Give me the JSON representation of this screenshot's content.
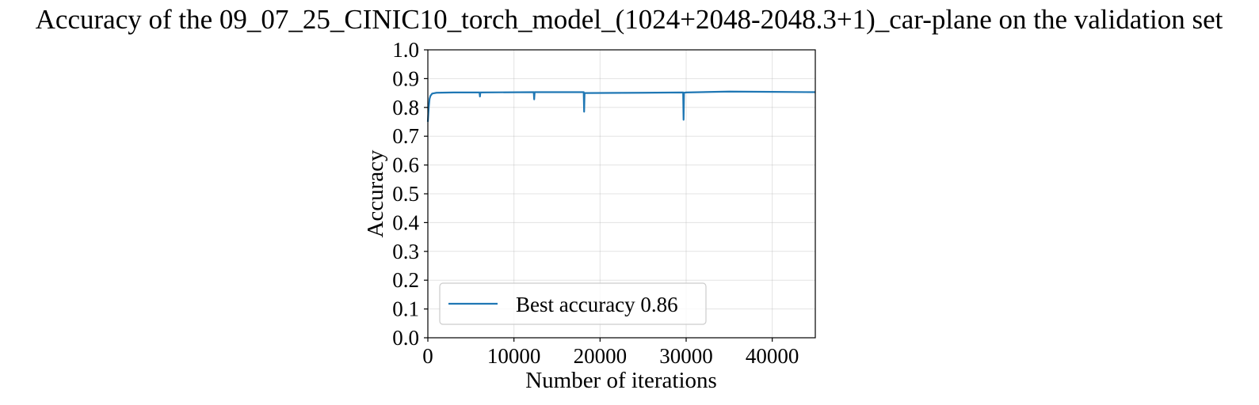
{
  "chart_data": {
    "type": "line",
    "title": "Accuracy of the 09_07_25_CINIC10_torch_model_(1024+2048-2048.3+1)_car-plane on the validation set",
    "xlabel": "Number of iterations",
    "ylabel": "Accuracy",
    "xlim": [
      0,
      45000
    ],
    "ylim": [
      0.0,
      1.0
    ],
    "xticks": [
      0,
      10000,
      20000,
      30000,
      40000
    ],
    "xtick_labels": [
      "0",
      "10000",
      "20000",
      "30000",
      "40000"
    ],
    "yticks": [
      0.0,
      0.1,
      0.2,
      0.3,
      0.4,
      0.5,
      0.6,
      0.7,
      0.8,
      0.9,
      1.0
    ],
    "ytick_labels": [
      "0.0",
      "0.1",
      "0.2",
      "0.3",
      "0.4",
      "0.5",
      "0.6",
      "0.7",
      "0.8",
      "0.9",
      "1.0"
    ],
    "grid": true,
    "legend": {
      "position": "lower-left"
    },
    "series": [
      {
        "name": "Best accuracy 0.86",
        "color": "#1f77b4",
        "points": [
          [
            0,
            0.75
          ],
          [
            100,
            0.8
          ],
          [
            200,
            0.83
          ],
          [
            300,
            0.84
          ],
          [
            500,
            0.848
          ],
          [
            1000,
            0.851
          ],
          [
            3000,
            0.852
          ],
          [
            6000,
            0.852
          ],
          [
            6050,
            0.838
          ],
          [
            6100,
            0.852
          ],
          [
            12300,
            0.853
          ],
          [
            12350,
            0.828
          ],
          [
            12400,
            0.853
          ],
          [
            18100,
            0.853
          ],
          [
            18150,
            0.785
          ],
          [
            18200,
            0.85
          ],
          [
            25000,
            0.851
          ],
          [
            29650,
            0.852
          ],
          [
            29700,
            0.757
          ],
          [
            29750,
            0.851
          ],
          [
            30000,
            0.852
          ],
          [
            35000,
            0.855
          ],
          [
            40000,
            0.854
          ],
          [
            45000,
            0.853
          ]
        ]
      }
    ]
  }
}
